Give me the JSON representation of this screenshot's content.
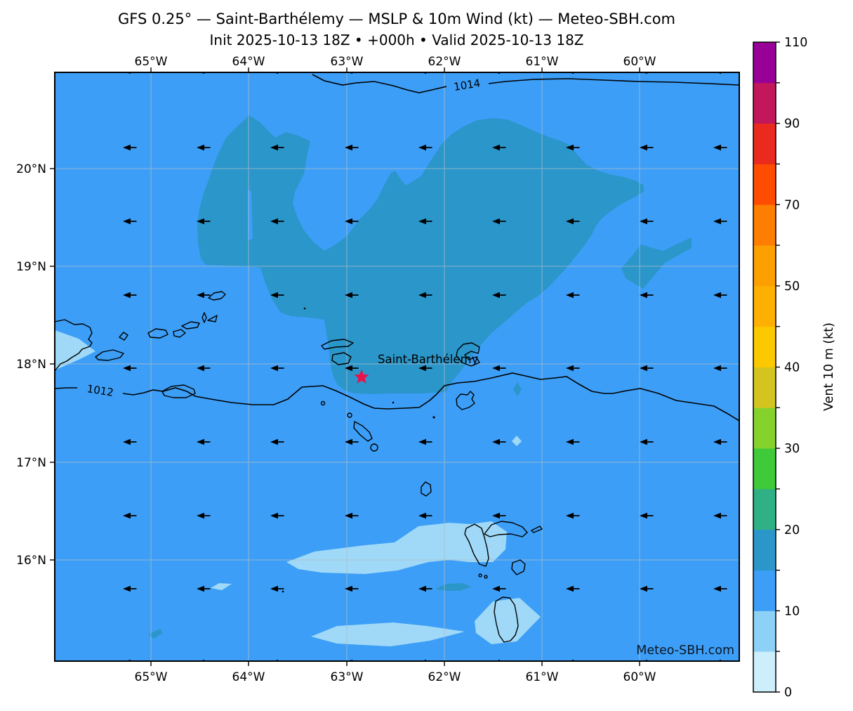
{
  "title": "GFS 0.25° — Saint-Barthélemy — MSLP & 10m Wind (kt) — Meteo-SBH.com",
  "subtitle": "Init 2025-10-13 18Z • +000h • Valid 2025-10-13 18Z",
  "axes": {
    "lon_labels": [
      "65°W",
      "64°W",
      "63°W",
      "62°W",
      "61°W",
      "60°W"
    ],
    "lat_labels": [
      "20°N",
      "19°N",
      "18°N",
      "17°N",
      "16°N"
    ]
  },
  "map": {
    "isobars": [
      {
        "label": "1014",
        "value_hpa": 1014
      },
      {
        "label": "1012",
        "value_hpa": 1012
      }
    ],
    "station": {
      "label": "Saint-Barthélemy",
      "marker": "star",
      "color": "#e8134b"
    },
    "watermark": "Meteo-SBH.com"
  },
  "colorbar": {
    "label": "Vent 10 m (kt)",
    "levels": [
      0,
      5,
      10,
      15,
      20,
      25,
      30,
      35,
      40,
      45,
      50,
      60,
      70,
      80,
      90,
      100,
      110
    ],
    "tick_labels": [
      "0",
      "10",
      "20",
      "30",
      "40",
      "50",
      "70",
      "90",
      "110"
    ],
    "band_colors": [
      "#cdeefb",
      "#8dd2f6",
      "#3d9ef7",
      "#2b96c9",
      "#2fb185",
      "#3fca3a",
      "#86d22d",
      "#d4c420",
      "#fcc800",
      "#fdb002",
      "#fc9f01",
      "#fd7e00",
      "#fe4c00",
      "#ea2a1e",
      "#c2185b",
      "#990097"
    ]
  },
  "colors": {
    "sea_10_15": "#3d9ef7",
    "region_15_20": "#2b96c9",
    "region_5_10": "#9fd9f7",
    "gridline": "#aebdc9",
    "coastline": "#000000",
    "isobar": "#000000",
    "arrow": "#000000",
    "watermark_gray": "#4b5661"
  },
  "chart_data": {
    "type": "heatmap",
    "title": "GFS 0.25° — Saint-Barthélemy — MSLP & 10m Wind (kt) — Meteo-SBH.com",
    "subtitle": "Init 2025-10-13 18Z • +000h • Valid 2025-10-13 18Z",
    "x_ticks": [
      "65°W",
      "64°W",
      "63°W",
      "62°W",
      "61°W",
      "60°W"
    ],
    "y_ticks": [
      "20°N",
      "19°N",
      "18°N",
      "17°N",
      "16°N"
    ],
    "colorbar_label": "Vent 10 m (kt)",
    "wind_speed_levels_kt": [
      0,
      5,
      10,
      15,
      20,
      25,
      30,
      35,
      40,
      45,
      50,
      60,
      70,
      80,
      90,
      100,
      110
    ],
    "isobar_values_hpa": [
      1012,
      1014
    ],
    "wind_direction": "easterly (all arrows point west)",
    "dominant_band_kt": "10-15",
    "regions": [
      {
        "band_kt": "15-20",
        "where": "large area north of Saint-Barthélemy (63.5°W–60.5°W, 18°N–21°N) plus small patch near 60.5°W 19.3°N"
      },
      {
        "band_kt": "5-10",
        "where": "patches near 16°N (63.5°W–61.5°W), around Guadeloupe and Dominica, and west edge near 18°N"
      }
    ]
  }
}
